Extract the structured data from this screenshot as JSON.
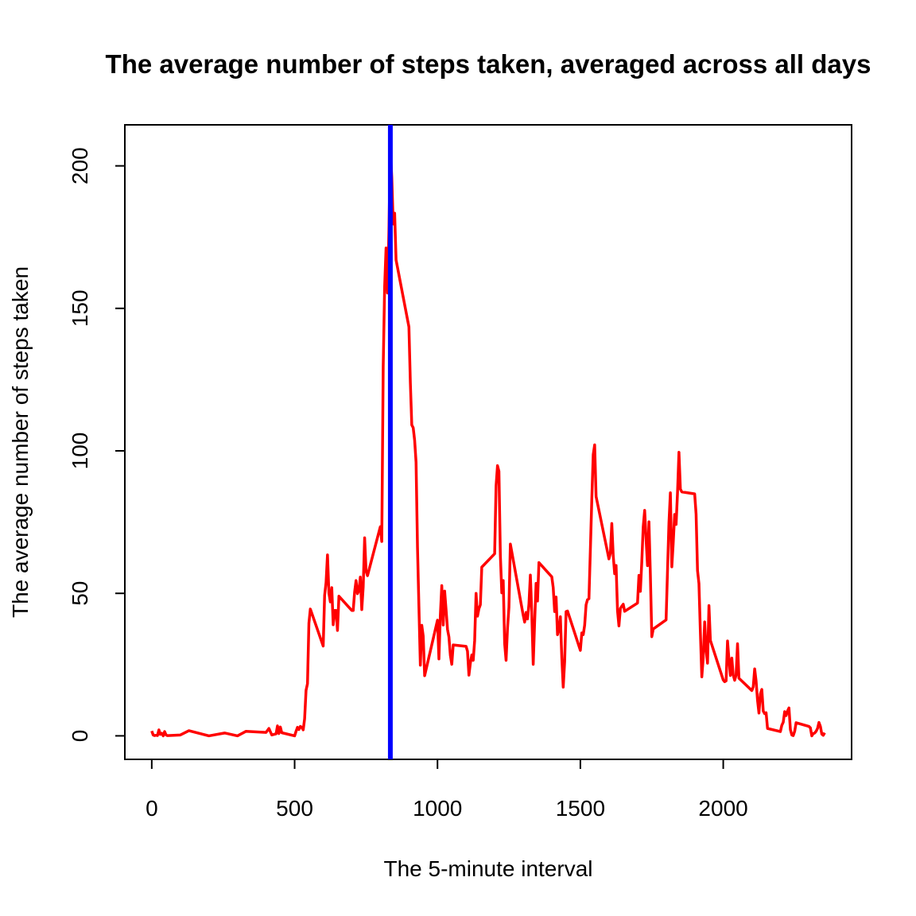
{
  "chart_data": {
    "type": "line",
    "title": "The average number of steps taken, averaged across all days",
    "x_label": "The 5-minute interval",
    "y_label": "The average number of steps taken",
    "x": [
      0,
      5,
      10,
      15,
      20,
      25,
      30,
      35,
      40,
      45,
      50,
      55,
      100,
      130,
      200,
      255,
      300,
      330,
      400,
      410,
      420,
      435,
      440,
      445,
      450,
      455,
      500,
      505,
      510,
      515,
      520,
      525,
      530,
      535,
      540,
      545,
      550,
      555,
      600,
      605,
      610,
      615,
      620,
      625,
      630,
      635,
      640,
      645,
      650,
      655,
      700,
      705,
      710,
      715,
      720,
      725,
      730,
      735,
      740,
      745,
      750,
      755,
      800,
      805,
      810,
      815,
      820,
      825,
      830,
      835,
      840,
      845,
      850,
      855,
      900,
      905,
      910,
      915,
      920,
      925,
      930,
      935,
      940,
      945,
      950,
      955,
      1000,
      1005,
      1010,
      1015,
      1020,
      1025,
      1030,
      1035,
      1040,
      1045,
      1050,
      1055,
      1100,
      1105,
      1110,
      1115,
      1120,
      1125,
      1130,
      1135,
      1140,
      1145,
      1150,
      1155,
      1200,
      1205,
      1210,
      1215,
      1220,
      1225,
      1230,
      1235,
      1240,
      1245,
      1250,
      1255,
      1300,
      1305,
      1310,
      1315,
      1320,
      1325,
      1330,
      1335,
      1340,
      1345,
      1350,
      1355,
      1400,
      1405,
      1410,
      1415,
      1420,
      1425,
      1430,
      1435,
      1440,
      1445,
      1450,
      1455,
      1500,
      1505,
      1510,
      1515,
      1520,
      1525,
      1530,
      1535,
      1540,
      1545,
      1550,
      1555,
      1600,
      1605,
      1610,
      1615,
      1620,
      1625,
      1630,
      1635,
      1640,
      1645,
      1650,
      1655,
      1700,
      1705,
      1710,
      1715,
      1720,
      1725,
      1730,
      1735,
      1740,
      1745,
      1750,
      1755,
      1800,
      1805,
      1810,
      1815,
      1820,
      1825,
      1830,
      1835,
      1840,
      1845,
      1850,
      1855,
      1900,
      1905,
      1910,
      1915,
      1920,
      1925,
      1930,
      1935,
      1940,
      1945,
      1950,
      1955,
      2000,
      2005,
      2010,
      2015,
      2020,
      2025,
      2030,
      2035,
      2040,
      2045,
      2050,
      2055,
      2100,
      2105,
      2110,
      2115,
      2120,
      2125,
      2130,
      2135,
      2140,
      2145,
      2150,
      2155,
      2200,
      2205,
      2210,
      2215,
      2220,
      2225,
      2230,
      2235,
      2240,
      2245,
      2250,
      2255,
      2300,
      2305,
      2310,
      2315,
      2320,
      2325,
      2330,
      2335,
      2340,
      2345,
      2350,
      2355
    ],
    "series": [
      {
        "name": "steps",
        "color": "#ff0000",
        "values": [
          1.7,
          0.3,
          0.1,
          0.2,
          0.1,
          2.1,
          0.5,
          0.9,
          0,
          1.5,
          0.3,
          0.1,
          0.3,
          1.8,
          0,
          1,
          0,
          1.6,
          1.2,
          2.6,
          0.3,
          0.7,
          3.5,
          0.8,
          3.1,
          1.1,
          0,
          1.6,
          3,
          2.2,
          3.3,
          3,
          2.1,
          6,
          16,
          18.3,
          39.5,
          44.5,
          31.5,
          49.3,
          53.8,
          63.5,
          50,
          47,
          52,
          39,
          44,
          44,
          37,
          49,
          44,
          44,
          50.5,
          54.5,
          49.9,
          51,
          55.7,
          44.3,
          52.3,
          69.5,
          57.8,
          56.2,
          73.4,
          68.2,
          129.4,
          157.5,
          171.2,
          155.4,
          177.3,
          206.2,
          195.9,
          179.6,
          183.4,
          167,
          143.5,
          124,
          109.1,
          108.1,
          103.7,
          96,
          66.2,
          45.2,
          24.8,
          38.8,
          35,
          21.1,
          40.6,
          27,
          42.4,
          52.7,
          38.9,
          50.8,
          44.3,
          37.4,
          34.7,
          28.3,
          25.1,
          31.9,
          31.4,
          29.7,
          21.3,
          25.5,
          28.4,
          26.5,
          33.4,
          50,
          42,
          44.6,
          46,
          59.2,
          63.9,
          87.7,
          94.8,
          92.8,
          63.4,
          50.2,
          54.5,
          32.4,
          26.5,
          37.7,
          45.1,
          67.3,
          42.3,
          39.9,
          43.3,
          41,
          46.2,
          56.4,
          42.8,
          25.1,
          40,
          53.5,
          47.3,
          60.8,
          55.8,
          52,
          43.6,
          48.7,
          35.5,
          37.5,
          41.8,
          27.5,
          17.1,
          26.1,
          43.6,
          43.8,
          30,
          36.1,
          35.5,
          38.8,
          46,
          47.8,
          48.1,
          65.3,
          82.9,
          98.7,
          102.1,
          84,
          62.1,
          64.1,
          74.5,
          63.2,
          56.9,
          59.8,
          43.9,
          38.6,
          44.7,
          45.5,
          46.2,
          43.7,
          46.6,
          56.3,
          50.7,
          61.2,
          73.4,
          79.1,
          68.9,
          59.7,
          75.1,
          56.5,
          34.8,
          37.5,
          40.7,
          58,
          74.7,
          85.3,
          59.3,
          67.8,
          77.7,
          74.2,
          85.3,
          99.5,
          86.6,
          85.6,
          84.9,
          77.8,
          58,
          53.4,
          36.3,
          20.7,
          27.4,
          40,
          30.2,
          25.5,
          45.7,
          33.5,
          19.6,
          19,
          19.3,
          33.3,
          26.8,
          21.2,
          27.3,
          21.3,
          19.5,
          21.3,
          32.3,
          20.2,
          15.9,
          17.2,
          23.5,
          19.2,
          12.5,
          8,
          14.7,
          16.3,
          8.7,
          7.8,
          8.1,
          2.6,
          1.5,
          3.7,
          4.8,
          8.5,
          7.1,
          8.7,
          9.8,
          2.2,
          0.3,
          0.1,
          1.6,
          4.6,
          3.3,
          2.8,
          0,
          0.8,
          1,
          1.6,
          2.6,
          4.7,
          3.3,
          0.6,
          0.2,
          1.1
        ]
      }
    ],
    "vline": {
      "x": 835,
      "color": "#0000ff"
    },
    "xlim": [
      -94.2,
      2449.2
    ],
    "xticks": [
      0,
      500,
      1000,
      1500,
      2000
    ],
    "ylim": [
      -8.25,
      214.4
    ],
    "yticks": [
      0,
      50,
      100,
      150,
      200
    ]
  }
}
